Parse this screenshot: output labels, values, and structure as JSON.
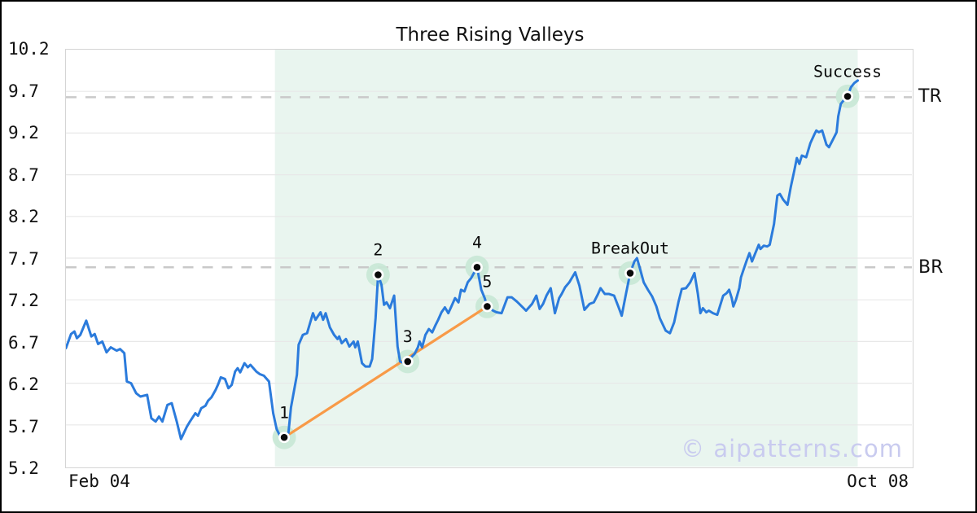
{
  "chart_data": {
    "type": "line",
    "title": "Three Rising Valleys",
    "watermark": "© aipatterns.com",
    "x_axis": {
      "start_label": "Feb 04",
      "end_label": "Oct 08"
    },
    "y_axis": {
      "lim": [
        5.2,
        10.2
      ],
      "tick_labels": [
        "5.2",
        "5.7",
        "6.2",
        "6.7",
        "7.2",
        "7.7",
        "8.2",
        "8.7",
        "9.2",
        "9.7",
        "10.2"
      ],
      "grid": true
    },
    "levels": [
      {
        "label": "TR",
        "value": 9.63
      },
      {
        "label": "BR",
        "value": 7.59
      }
    ],
    "pattern_region": {
      "x_start": 0.247,
      "x_end": 0.936
    },
    "trendline": {
      "from": [
        0.258,
        5.55
      ],
      "to": [
        0.498,
        7.12
      ]
    },
    "markers": [
      {
        "label": "1",
        "x": 0.258,
        "y": 5.55
      },
      {
        "label": "2",
        "x": 0.369,
        "y": 7.5
      },
      {
        "label": "3",
        "x": 0.404,
        "y": 6.46
      },
      {
        "label": "4",
        "x": 0.486,
        "y": 7.59
      },
      {
        "label": "5",
        "x": 0.498,
        "y": 7.12
      },
      {
        "label": "BreakOut",
        "x": 0.667,
        "y": 7.52
      },
      {
        "label": "Success",
        "x": 0.924,
        "y": 9.64
      }
    ],
    "series": [
      {
        "name": "price",
        "points": [
          [
            0.0,
            6.62
          ],
          [
            0.006,
            6.79
          ],
          [
            0.01,
            6.82
          ],
          [
            0.013,
            6.74
          ],
          [
            0.017,
            6.78
          ],
          [
            0.024,
            6.95
          ],
          [
            0.03,
            6.76
          ],
          [
            0.034,
            6.79
          ],
          [
            0.038,
            6.67
          ],
          [
            0.043,
            6.7
          ],
          [
            0.048,
            6.57
          ],
          [
            0.053,
            6.63
          ],
          [
            0.06,
            6.59
          ],
          [
            0.064,
            6.61
          ],
          [
            0.069,
            6.56
          ],
          [
            0.072,
            6.22
          ],
          [
            0.077,
            6.2
          ],
          [
            0.083,
            6.08
          ],
          [
            0.088,
            6.04
          ],
          [
            0.096,
            6.06
          ],
          [
            0.101,
            5.78
          ],
          [
            0.106,
            5.74
          ],
          [
            0.11,
            5.8
          ],
          [
            0.114,
            5.74
          ],
          [
            0.12,
            5.94
          ],
          [
            0.125,
            5.96
          ],
          [
            0.131,
            5.74
          ],
          [
            0.136,
            5.53
          ],
          [
            0.143,
            5.68
          ],
          [
            0.146,
            5.73
          ],
          [
            0.153,
            5.84
          ],
          [
            0.156,
            5.81
          ],
          [
            0.16,
            5.9
          ],
          [
            0.165,
            5.93
          ],
          [
            0.168,
            5.99
          ],
          [
            0.172,
            6.03
          ],
          [
            0.177,
            6.12
          ],
          [
            0.18,
            6.19
          ],
          [
            0.183,
            6.27
          ],
          [
            0.188,
            6.25
          ],
          [
            0.192,
            6.14
          ],
          [
            0.196,
            6.18
          ],
          [
            0.2,
            6.34
          ],
          [
            0.203,
            6.38
          ],
          [
            0.206,
            6.33
          ],
          [
            0.211,
            6.44
          ],
          [
            0.215,
            6.39
          ],
          [
            0.218,
            6.42
          ],
          [
            0.225,
            6.34
          ],
          [
            0.229,
            6.31
          ],
          [
            0.234,
            6.29
          ],
          [
            0.24,
            6.22
          ],
          [
            0.245,
            5.84
          ],
          [
            0.249,
            5.65
          ],
          [
            0.253,
            5.57
          ],
          [
            0.258,
            5.55
          ],
          [
            0.263,
            5.6
          ],
          [
            0.266,
            5.91
          ],
          [
            0.273,
            6.3
          ],
          [
            0.275,
            6.66
          ],
          [
            0.28,
            6.78
          ],
          [
            0.285,
            6.8
          ],
          [
            0.292,
            7.04
          ],
          [
            0.295,
            6.96
          ],
          [
            0.301,
            7.05
          ],
          [
            0.304,
            6.96
          ],
          [
            0.307,
            7.04
          ],
          [
            0.312,
            6.87
          ],
          [
            0.317,
            6.78
          ],
          [
            0.321,
            6.73
          ],
          [
            0.323,
            6.76
          ],
          [
            0.326,
            6.68
          ],
          [
            0.331,
            6.73
          ],
          [
            0.335,
            6.64
          ],
          [
            0.34,
            6.7
          ],
          [
            0.342,
            6.63
          ],
          [
            0.345,
            6.7
          ],
          [
            0.35,
            6.44
          ],
          [
            0.354,
            6.4
          ],
          [
            0.359,
            6.4
          ],
          [
            0.362,
            6.49
          ],
          [
            0.366,
            6.98
          ],
          [
            0.369,
            7.5
          ],
          [
            0.373,
            7.38
          ],
          [
            0.376,
            7.14
          ],
          [
            0.379,
            7.17
          ],
          [
            0.383,
            7.1
          ],
          [
            0.388,
            7.25
          ],
          [
            0.392,
            6.64
          ],
          [
            0.395,
            6.46
          ],
          [
            0.4,
            6.44
          ],
          [
            0.404,
            6.46
          ],
          [
            0.408,
            6.51
          ],
          [
            0.412,
            6.55
          ],
          [
            0.416,
            6.63
          ],
          [
            0.418,
            6.7
          ],
          [
            0.421,
            6.63
          ],
          [
            0.425,
            6.78
          ],
          [
            0.429,
            6.85
          ],
          [
            0.433,
            6.81
          ],
          [
            0.437,
            6.9
          ],
          [
            0.44,
            6.96
          ],
          [
            0.444,
            7.05
          ],
          [
            0.448,
            7.11
          ],
          [
            0.452,
            7.04
          ],
          [
            0.456,
            7.13
          ],
          [
            0.46,
            7.22
          ],
          [
            0.464,
            7.17
          ],
          [
            0.467,
            7.32
          ],
          [
            0.471,
            7.3
          ],
          [
            0.475,
            7.41
          ],
          [
            0.479,
            7.46
          ],
          [
            0.486,
            7.59
          ],
          [
            0.491,
            7.32
          ],
          [
            0.495,
            7.22
          ],
          [
            0.498,
            7.12
          ],
          [
            0.505,
            7.07
          ],
          [
            0.509,
            7.05
          ],
          [
            0.515,
            7.04
          ],
          [
            0.522,
            7.23
          ],
          [
            0.527,
            7.23
          ],
          [
            0.533,
            7.18
          ],
          [
            0.536,
            7.15
          ],
          [
            0.544,
            7.07
          ],
          [
            0.551,
            7.15
          ],
          [
            0.556,
            7.25
          ],
          [
            0.56,
            7.09
          ],
          [
            0.564,
            7.15
          ],
          [
            0.568,
            7.25
          ],
          [
            0.573,
            7.34
          ],
          [
            0.578,
            7.04
          ],
          [
            0.583,
            7.22
          ],
          [
            0.586,
            7.27
          ],
          [
            0.59,
            7.35
          ],
          [
            0.595,
            7.41
          ],
          [
            0.602,
            7.53
          ],
          [
            0.607,
            7.37
          ],
          [
            0.613,
            7.08
          ],
          [
            0.619,
            7.15
          ],
          [
            0.624,
            7.17
          ],
          [
            0.629,
            7.27
          ],
          [
            0.632,
            7.34
          ],
          [
            0.637,
            7.27
          ],
          [
            0.642,
            7.27
          ],
          [
            0.648,
            7.25
          ],
          [
            0.653,
            7.12
          ],
          [
            0.657,
            7.01
          ],
          [
            0.662,
            7.27
          ],
          [
            0.667,
            7.52
          ],
          [
            0.672,
            7.66
          ],
          [
            0.675,
            7.7
          ],
          [
            0.679,
            7.56
          ],
          [
            0.683,
            7.41
          ],
          [
            0.688,
            7.32
          ],
          [
            0.693,
            7.24
          ],
          [
            0.698,
            7.12
          ],
          [
            0.702,
            6.98
          ],
          [
            0.709,
            6.83
          ],
          [
            0.714,
            6.8
          ],
          [
            0.719,
            6.93
          ],
          [
            0.724,
            7.17
          ],
          [
            0.728,
            7.33
          ],
          [
            0.733,
            7.34
          ],
          [
            0.738,
            7.41
          ],
          [
            0.743,
            7.52
          ],
          [
            0.747,
            7.27
          ],
          [
            0.75,
            7.04
          ],
          [
            0.753,
            7.1
          ],
          [
            0.757,
            7.05
          ],
          [
            0.76,
            7.07
          ],
          [
            0.765,
            7.04
          ],
          [
            0.77,
            7.02
          ],
          [
            0.773,
            7.12
          ],
          [
            0.777,
            7.25
          ],
          [
            0.781,
            7.28
          ],
          [
            0.784,
            7.32
          ],
          [
            0.787,
            7.22
          ],
          [
            0.789,
            7.12
          ],
          [
            0.792,
            7.2
          ],
          [
            0.796,
            7.34
          ],
          [
            0.798,
            7.47
          ],
          [
            0.801,
            7.56
          ],
          [
            0.805,
            7.68
          ],
          [
            0.808,
            7.76
          ],
          [
            0.811,
            7.66
          ],
          [
            0.815,
            7.76
          ],
          [
            0.819,
            7.86
          ],
          [
            0.821,
            7.81
          ],
          [
            0.825,
            7.85
          ],
          [
            0.829,
            7.84
          ],
          [
            0.832,
            7.86
          ],
          [
            0.837,
            8.11
          ],
          [
            0.841,
            8.45
          ],
          [
            0.844,
            8.47
          ],
          [
            0.848,
            8.4
          ],
          [
            0.853,
            8.34
          ],
          [
            0.857,
            8.56
          ],
          [
            0.861,
            8.75
          ],
          [
            0.864,
            8.9
          ],
          [
            0.867,
            8.83
          ],
          [
            0.87,
            8.93
          ],
          [
            0.875,
            8.91
          ],
          [
            0.88,
            9.08
          ],
          [
            0.885,
            9.19
          ],
          [
            0.887,
            9.23
          ],
          [
            0.89,
            9.21
          ],
          [
            0.894,
            9.23
          ],
          [
            0.899,
            9.06
          ],
          [
            0.902,
            9.03
          ],
          [
            0.906,
            9.11
          ],
          [
            0.911,
            9.21
          ],
          [
            0.913,
            9.4
          ],
          [
            0.916,
            9.55
          ],
          [
            0.92,
            9.6
          ],
          [
            0.924,
            9.64
          ],
          [
            0.928,
            9.75
          ],
          [
            0.932,
            9.8
          ],
          [
            0.936,
            9.83
          ]
        ]
      }
    ],
    "colors": {
      "line": "#2b7bdc",
      "trendline": "#f89a47",
      "marker_halo": "#c8e8d5",
      "marker_dot": "#0a0a0a",
      "marker_ring": "#ffffff",
      "region": "#e9f5ef",
      "grid": "#e8e8e8",
      "level_dash": "#c9c9c9",
      "watermark": "#c9cbef"
    }
  }
}
